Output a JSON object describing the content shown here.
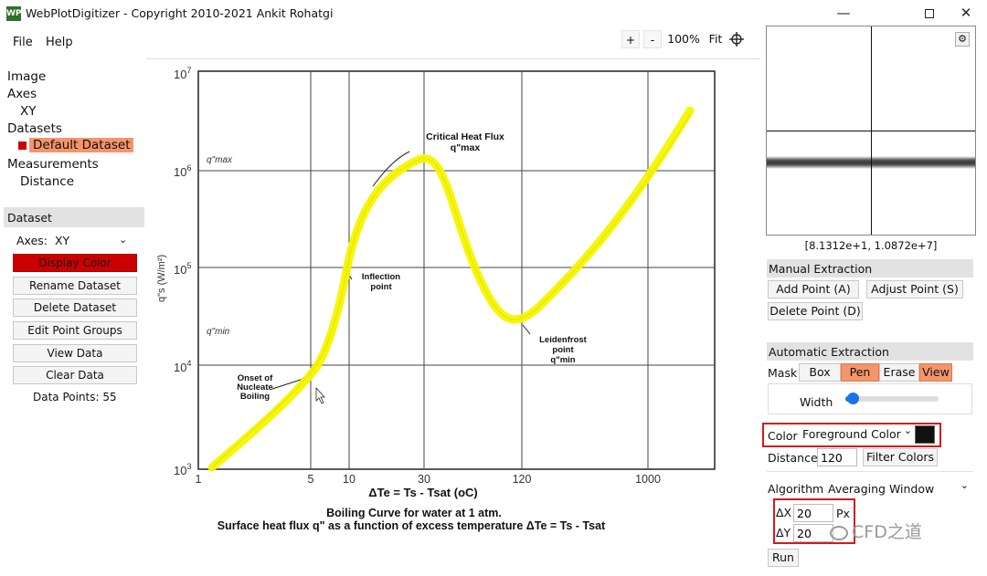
{
  "window": {
    "title": "WebPlotDigitizer - Copyright 2010-2021 Ankit Rohatgi",
    "icon_text": "WPD",
    "controls": [
      "minimize-icon",
      "maximize-icon",
      "close-icon"
    ]
  },
  "menu": {
    "file": "File",
    "help": "Help"
  },
  "zoom": {
    "plus": "+",
    "minus": "-",
    "level": "100%",
    "fit": "Fit",
    "crosshair": "crosshair-icon"
  },
  "tree": {
    "image": "Image",
    "axes": "Axes",
    "xy": "XY",
    "datasets": "Datasets",
    "default_dataset": "Default Dataset",
    "measurements": "Measurements",
    "distance": "Distance"
  },
  "dataset_panel": {
    "header": "Dataset",
    "axes_label": "Axes:",
    "axes_value": "XY",
    "display_color": "Display Color",
    "rename": "Rename Dataset",
    "delete": "Delete Dataset",
    "edit_groups": "Edit Point Groups",
    "view_data": "View Data",
    "clear_data": "Clear Data",
    "data_points": "Data Points: 55",
    "colors": {
      "dataset_color": "#cc0000",
      "selected_bg": "#f4956a"
    }
  },
  "plot": {
    "y_ticks": [
      "10",
      "10",
      "10",
      "10",
      "10"
    ],
    "y_exponents": [
      "7",
      "6",
      "5",
      "4",
      "3"
    ],
    "y_label": "q\"s (W/m²)",
    "q_max": "q\"max",
    "q_min": "q\"min",
    "x_ticks": [
      "1",
      "5",
      "10",
      "30",
      "120",
      "1000"
    ],
    "x_label_main": "ΔTe = Ts - Tsat (oC)",
    "caption_1": "Boiling Curve for water at 1 atm.",
    "caption_2": "Surface heat flux q\" as a function of excess temperature ΔTe = Ts - Tsat",
    "annotations": {
      "chf_1": "Critical Heat Flux",
      "chf_2": "q\"max",
      "inflection_1": "Inflection",
      "inflection_2": "point",
      "leidenfrost_1": "Leidenfrost",
      "leidenfrost_2": "point",
      "leidenfrost_3": "q\"min",
      "onset_1": "Onset of",
      "onset_2": "Nucleate",
      "onset_3": "Boiling"
    },
    "trace_color": "#f5f500"
  },
  "magnifier": {
    "coords": "[8.1312e+1, 1.0872e+7]",
    "settings_icon": "gear-icon"
  },
  "manual": {
    "header": "Manual Extraction",
    "add_point": "Add Point (A)",
    "adjust_point": "Adjust Point (S)",
    "delete_point": "Delete Point (D)"
  },
  "automatic": {
    "header": "Automatic Extraction",
    "mask_label": "Mask",
    "box": "Box",
    "pen": "Pen",
    "erase": "Erase",
    "view": "View",
    "width_label": "Width",
    "width_value": 0.05,
    "color_label": "Color",
    "color_mode": "Foreground Color",
    "color_swatch": "#111111",
    "distance_label": "Distance",
    "distance_value": "120",
    "filter_colors": "Filter Colors",
    "algorithm_label": "Algorithm",
    "algorithm_value": "Averaging Window",
    "dx_label": "ΔX",
    "dx_value": "20",
    "dy_label": "ΔY",
    "dy_value": "20",
    "px": "Px",
    "run": "Run",
    "active_color": "#f4956a"
  },
  "watermark": {
    "text": "CFD之道"
  }
}
